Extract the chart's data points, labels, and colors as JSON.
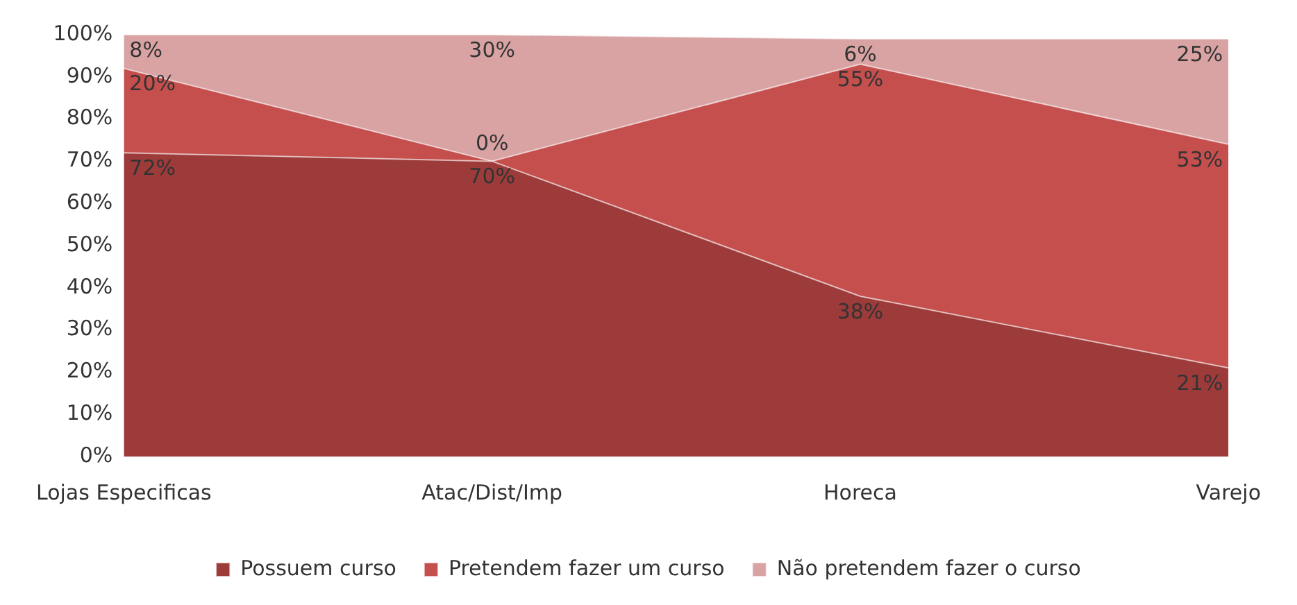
{
  "chart_data": {
    "type": "area",
    "stacked": true,
    "categories": [
      "Lojas Especificas",
      "Atac/Dist/Imp",
      "Horeca",
      "Varejo"
    ],
    "series": [
      {
        "name": "Possuem curso",
        "color": "#9c3b3a",
        "values": [
          72,
          70,
          38,
          21
        ],
        "value_labels": [
          "72%",
          "70%",
          "38%",
          "21%"
        ]
      },
      {
        "name": "Pretendem fazer um curso",
        "color": "#c44f4d",
        "values": [
          20,
          0,
          55,
          53
        ],
        "value_labels": [
          "20%",
          "0%",
          "55%",
          "53%"
        ]
      },
      {
        "name": "Não pretendem fazer o curso",
        "color": "#d9a3a4",
        "values": [
          8,
          30,
          6,
          25
        ],
        "value_labels": [
          "8%",
          "30%",
          "6%",
          "25%"
        ]
      }
    ],
    "ylim": [
      0,
      100
    ],
    "yticks": [
      {
        "value": 0,
        "label": "0%"
      },
      {
        "value": 10,
        "label": "10%"
      },
      {
        "value": 20,
        "label": "20%"
      },
      {
        "value": 30,
        "label": "30%"
      },
      {
        "value": 40,
        "label": "40%"
      },
      {
        "value": 50,
        "label": "50%"
      },
      {
        "value": 60,
        "label": "60%"
      },
      {
        "value": 70,
        "label": "70%"
      },
      {
        "value": 80,
        "label": "80%"
      },
      {
        "value": 90,
        "label": "90%"
      },
      {
        "value": 100,
        "label": "100%"
      }
    ],
    "grid": false,
    "legend": "bottom"
  }
}
